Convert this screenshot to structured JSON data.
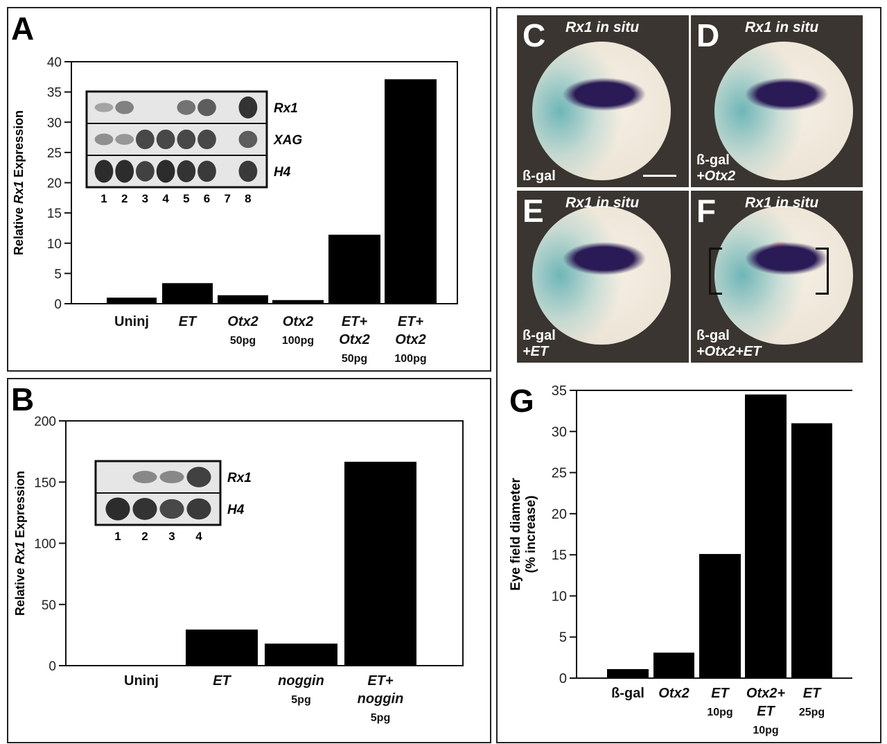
{
  "panels": {
    "A": "A",
    "B": "B",
    "C": "C",
    "D": "D",
    "E": "E",
    "F": "F",
    "G": "G"
  },
  "photos": [
    {
      "letter": "C",
      "title": "Rx1 in situ",
      "injection": [
        "ß-gal"
      ],
      "scale_bar": true
    },
    {
      "letter": "D",
      "title": "Rx1 in situ",
      "injection": [
        "ß-gal",
        "+Otx2"
      ]
    },
    {
      "letter": "E",
      "title": "Rx1 in situ",
      "injection": [
        "ß-gal",
        "+ET"
      ]
    },
    {
      "letter": "F",
      "title": "Rx1 in situ",
      "injection": [
        "ß-gal",
        "+Otx2+ET"
      ],
      "brackets": true
    }
  ],
  "colors": {
    "bar": "#000000",
    "stain_purple": "#2a1a55",
    "stain_blue": "#6fb6b8",
    "stain_red": "#c0304a"
  },
  "insets": {
    "A": {
      "rows": [
        "Rx1",
        "XAG",
        "H4"
      ],
      "lanes": [
        "1",
        "2",
        "3",
        "4",
        "5",
        "6",
        "7",
        "8"
      ]
    },
    "B": {
      "rows": [
        "Rx1",
        "H4"
      ],
      "lanes": [
        "1",
        "2",
        "3",
        "4"
      ]
    }
  },
  "chart_data": [
    {
      "id": "A",
      "type": "bar",
      "ylabel": "Relative Rx1 Expression",
      "ylabel_parts": [
        "Relative ",
        "Rx1",
        " Expression"
      ],
      "ylim": [
        0,
        40
      ],
      "yticks": [
        0,
        5,
        10,
        15,
        20,
        25,
        30,
        35,
        40
      ],
      "categories": [
        [
          {
            "t": "Uninj",
            "s": "n"
          }
        ],
        [
          {
            "t": "ET",
            "s": "i"
          }
        ],
        [
          {
            "t": "Otx2",
            "s": "i"
          },
          {
            "t": "50pg",
            "s": "sm"
          }
        ],
        [
          {
            "t": "Otx2",
            "s": "i"
          },
          {
            "t": "100pg",
            "s": "sm"
          }
        ],
        [
          {
            "t": "ET+",
            "s": "i"
          },
          {
            "t": "Otx2",
            "s": "i"
          },
          {
            "t": "50pg",
            "s": "sm"
          }
        ],
        [
          {
            "t": "ET+",
            "s": "i"
          },
          {
            "t": "Otx2",
            "s": "i"
          },
          {
            "t": "100pg",
            "s": "sm"
          }
        ]
      ],
      "values": [
        1.0,
        3.4,
        1.4,
        0.6,
        11.4,
        37.1
      ]
    },
    {
      "id": "B",
      "type": "bar",
      "ylabel": "Relative Rx1 Expression",
      "ylabel_parts": [
        "Relative ",
        "Rx1",
        " Expression"
      ],
      "ylim": [
        0,
        200
      ],
      "yticks": [
        0,
        50,
        100,
        150,
        200
      ],
      "categories": [
        [
          {
            "t": "Uninj",
            "s": "n"
          }
        ],
        [
          {
            "t": "ET",
            "s": "i"
          }
        ],
        [
          {
            "t": "noggin",
            "s": "i"
          },
          {
            "t": "5pg",
            "s": "sm"
          }
        ],
        [
          {
            "t": "ET+",
            "s": "i"
          },
          {
            "t": "noggin",
            "s": "i"
          },
          {
            "t": "5pg",
            "s": "sm"
          }
        ]
      ],
      "values": [
        0.5,
        29.5,
        18,
        166.6
      ]
    },
    {
      "id": "G",
      "type": "bar",
      "ylabel": "Eye field diameter (% increase)",
      "ylabel_parts": [
        "Eye field diameter",
        "(% increase)"
      ],
      "ylim": [
        0,
        35
      ],
      "yticks": [
        0,
        5,
        10,
        15,
        20,
        25,
        30,
        35
      ],
      "categories": [
        [
          {
            "t": "ß-gal",
            "s": "n"
          }
        ],
        [
          {
            "t": "Otx2",
            "s": "i"
          }
        ],
        [
          {
            "t": "ET",
            "s": "i"
          },
          {
            "t": "10pg",
            "s": "sm"
          }
        ],
        [
          {
            "t": "Otx2+",
            "s": "i"
          },
          {
            "t": "ET",
            "s": "i"
          },
          {
            "t": "10pg",
            "s": "sm"
          }
        ],
        [
          {
            "t": "ET",
            "s": "i"
          },
          {
            "t": "25pg",
            "s": "sm"
          }
        ]
      ],
      "values": [
        1.1,
        3.1,
        15.1,
        34.5,
        31.0
      ]
    }
  ]
}
